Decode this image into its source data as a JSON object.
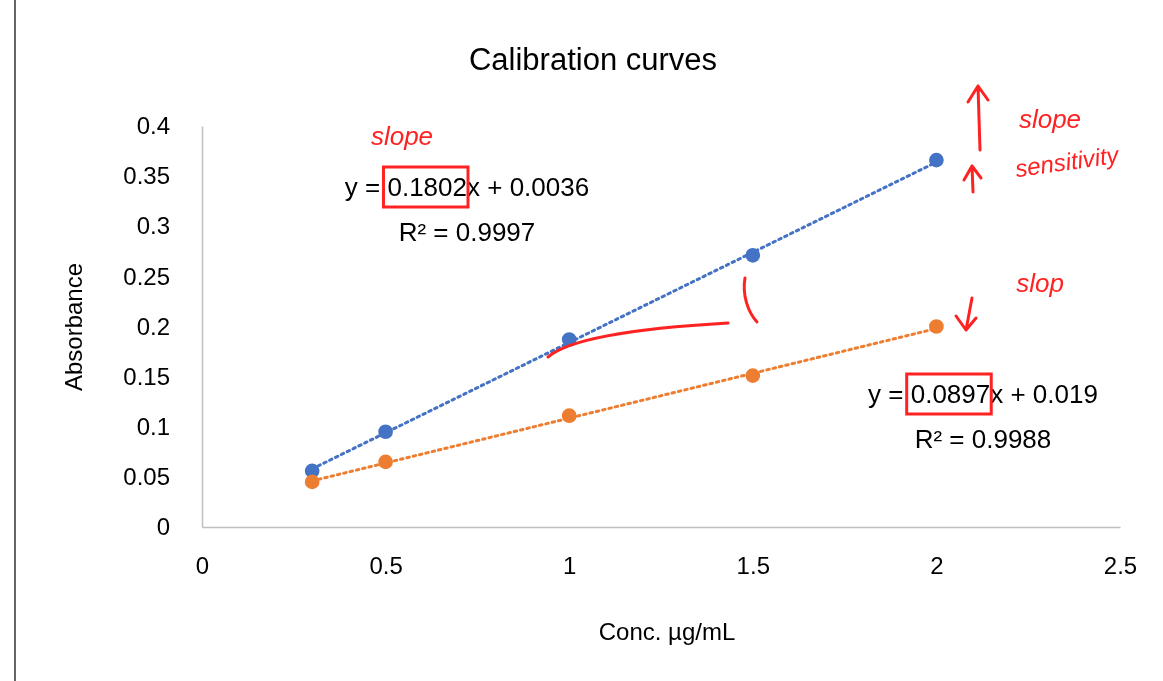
{
  "chart_data": {
    "type": "scatter",
    "title": "Calibration curves",
    "xlabel": "Conc. µg/mL",
    "ylabel": "Absorbance",
    "xlim": [
      0,
      2.5
    ],
    "xticks": [
      0,
      0.5,
      1,
      1.5,
      2,
      2.5
    ],
    "ylim": [
      0,
      0.4
    ],
    "yticks": [
      0,
      0.05,
      0.1,
      0.15,
      0.2,
      0.25,
      0.3,
      0.35,
      0.4
    ],
    "marker": "circle",
    "series": [
      {
        "type": "line",
        "color": "#4472c4",
        "line_style": "dotted",
        "marker": "none",
        "x": [
          0.3,
          2
        ],
        "values": [
          0.058,
          0.364
        ]
      },
      {
        "type": "line",
        "color": "#ed7d31",
        "line_style": "dotted",
        "marker": "none",
        "x": [
          0.3,
          2
        ],
        "values": [
          0.046,
          0.198
        ]
      },
      {
        "color": "#4472c4",
        "x": [
          0.3,
          0.5,
          1,
          1.5,
          2
        ],
        "values": [
          0.056,
          0.095,
          0.187,
          0.271,
          0.366
        ]
      },
      {
        "color": "#ed7d31",
        "x": [
          0.3,
          0.5,
          1,
          1.5,
          2
        ],
        "values": [
          0.045,
          0.065,
          0.111,
          0.151,
          0.2
        ]
      }
    ],
    "annotations": [
      "y = 0.1802x + 0.0036",
      "R² = 0.9997",
      "y = 0.0897x + 0.019",
      "R² = 0.9988",
      "slope",
      "slope",
      "sensitivity",
      "slop"
    ]
  }
}
